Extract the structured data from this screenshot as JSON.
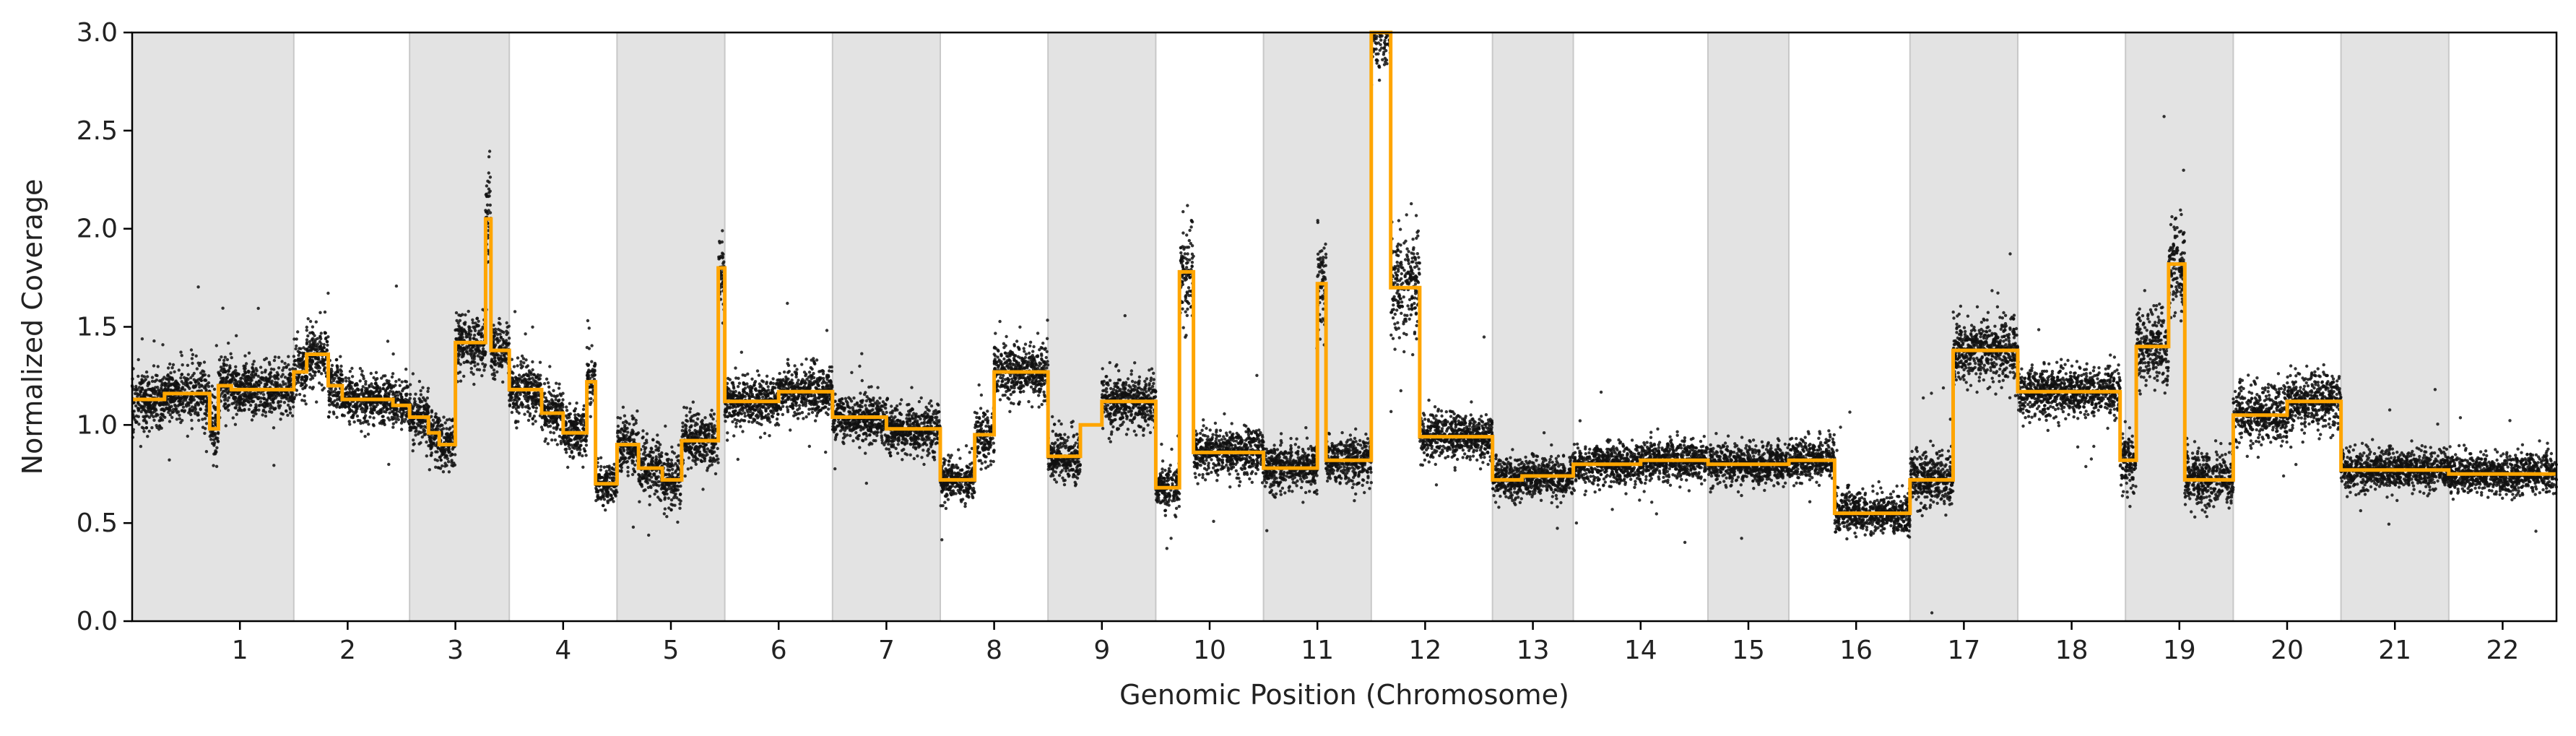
{
  "chart_data": {
    "type": "scatter",
    "title": "",
    "xlabel": "Genomic Position (Chromosome)",
    "ylabel": "Normalized Coverage",
    "ylim": [
      0.0,
      3.0
    ],
    "yticks": [
      "0.0",
      "0.5",
      "1.0",
      "1.5",
      "2.0",
      "2.5",
      "3.0"
    ],
    "grid": false,
    "legend": "none",
    "colors": {
      "points": "#111111",
      "segment_line": "#FFA500",
      "shade": "#E3E3E3",
      "shade_border": "#C8C8C8"
    },
    "x_unit": "genome index (chromosome boundaries)",
    "chromosomes": [
      {
        "label": "1",
        "start": 0.0,
        "end": 1.5,
        "shaded": true
      },
      {
        "label": "2",
        "start": 1.5,
        "end": 2.575,
        "shaded": false
      },
      {
        "label": "3",
        "start": 2.575,
        "end": 3.5,
        "shaded": true
      },
      {
        "label": "4",
        "start": 3.5,
        "end": 4.5,
        "shaded": false
      },
      {
        "label": "5",
        "start": 4.5,
        "end": 5.5,
        "shaded": true
      },
      {
        "label": "6",
        "start": 5.5,
        "end": 6.5,
        "shaded": false
      },
      {
        "label": "7",
        "start": 6.5,
        "end": 7.5,
        "shaded": true
      },
      {
        "label": "8",
        "start": 7.5,
        "end": 8.5,
        "shaded": false
      },
      {
        "label": "9",
        "start": 8.5,
        "end": 9.5,
        "shaded": true
      },
      {
        "label": "10",
        "start": 9.5,
        "end": 10.5,
        "shaded": false
      },
      {
        "label": "11",
        "start": 10.5,
        "end": 11.5,
        "shaded": true
      },
      {
        "label": "12",
        "start": 11.5,
        "end": 12.625,
        "shaded": false
      },
      {
        "label": "13",
        "start": 12.625,
        "end": 13.375,
        "shaded": true
      },
      {
        "label": "14",
        "start": 13.375,
        "end": 14.625,
        "shaded": false
      },
      {
        "label": "15",
        "start": 14.625,
        "end": 15.375,
        "shaded": true
      },
      {
        "label": "16",
        "start": 15.375,
        "end": 16.5,
        "shaded": false
      },
      {
        "label": "17",
        "start": 16.5,
        "end": 17.5,
        "shaded": true
      },
      {
        "label": "18",
        "start": 17.5,
        "end": 18.5,
        "shaded": false
      },
      {
        "label": "19",
        "start": 18.5,
        "end": 19.5,
        "shaded": true
      },
      {
        "label": "20",
        "start": 19.5,
        "end": 20.5,
        "shaded": false
      },
      {
        "label": "21",
        "start": 20.5,
        "end": 21.5,
        "shaded": true
      },
      {
        "label": "22",
        "start": 21.5,
        "end": 22.5,
        "shaded": false
      }
    ],
    "xticks": [
      {
        "label": "1",
        "x": 1
      },
      {
        "label": "2",
        "x": 2
      },
      {
        "label": "3",
        "x": 3
      },
      {
        "label": "4",
        "x": 4
      },
      {
        "label": "5",
        "x": 5
      },
      {
        "label": "6",
        "x": 6
      },
      {
        "label": "7",
        "x": 7
      },
      {
        "label": "8",
        "x": 8
      },
      {
        "label": "9",
        "x": 9
      },
      {
        "label": "10",
        "x": 10
      },
      {
        "label": "11",
        "x": 11
      },
      {
        "label": "12",
        "x": 12
      },
      {
        "label": "13",
        "x": 13
      },
      {
        "label": "14",
        "x": 14
      },
      {
        "label": "15",
        "x": 15
      },
      {
        "label": "16",
        "x": 16
      },
      {
        "label": "17",
        "x": 17
      },
      {
        "label": "18",
        "x": 18
      },
      {
        "label": "19",
        "x": 19
      },
      {
        "label": "20",
        "x": 20
      },
      {
        "label": "21",
        "x": 21
      },
      {
        "label": "22",
        "x": 22
      }
    ],
    "xlim": [
      0.0,
      22.5
    ],
    "points_per_unit": 90,
    "segments": [
      {
        "x0": 0.0,
        "x1": 0.3,
        "y": 1.13,
        "sd": 0.07
      },
      {
        "x0": 0.3,
        "x1": 0.72,
        "y": 1.16,
        "sd": 0.07
      },
      {
        "x0": 0.72,
        "x1": 0.8,
        "y": 0.98,
        "sd": 0.07
      },
      {
        "x0": 0.8,
        "x1": 0.92,
        "y": 1.2,
        "sd": 0.07
      },
      {
        "x0": 0.92,
        "x1": 1.5,
        "y": 1.18,
        "sd": 0.07
      },
      {
        "x0": 1.5,
        "x1": 1.62,
        "y": 1.27,
        "sd": 0.07
      },
      {
        "x0": 1.62,
        "x1": 1.82,
        "y": 1.36,
        "sd": 0.08
      },
      {
        "x0": 1.82,
        "x1": 1.95,
        "y": 1.2,
        "sd": 0.07
      },
      {
        "x0": 1.95,
        "x1": 2.42,
        "y": 1.13,
        "sd": 0.06
      },
      {
        "x0": 2.42,
        "x1": 2.575,
        "y": 1.1,
        "sd": 0.06
      },
      {
        "x0": 2.575,
        "x1": 2.75,
        "y": 1.04,
        "sd": 0.07
      },
      {
        "x0": 2.75,
        "x1": 2.85,
        "y": 0.96,
        "sd": 0.07
      },
      {
        "x0": 2.85,
        "x1": 3.0,
        "y": 0.9,
        "sd": 0.06
      },
      {
        "x0": 3.0,
        "x1": 3.28,
        "y": 1.42,
        "sd": 0.07
      },
      {
        "x0": 3.28,
        "x1": 3.33,
        "y": 2.05,
        "sd": 0.14
      },
      {
        "x0": 3.33,
        "x1": 3.5,
        "y": 1.38,
        "sd": 0.07
      },
      {
        "x0": 3.5,
        "x1": 3.8,
        "y": 1.18,
        "sd": 0.07
      },
      {
        "x0": 3.8,
        "x1": 4.0,
        "y": 1.06,
        "sd": 0.07
      },
      {
        "x0": 4.0,
        "x1": 4.22,
        "y": 0.96,
        "sd": 0.06
      },
      {
        "x0": 4.22,
        "x1": 4.3,
        "y": 1.22,
        "sd": 0.07
      },
      {
        "x0": 4.3,
        "x1": 4.5,
        "y": 0.7,
        "sd": 0.05
      },
      {
        "x0": 4.5,
        "x1": 4.7,
        "y": 0.9,
        "sd": 0.07
      },
      {
        "x0": 4.7,
        "x1": 4.92,
        "y": 0.78,
        "sd": 0.07
      },
      {
        "x0": 4.92,
        "x1": 5.1,
        "y": 0.72,
        "sd": 0.07
      },
      {
        "x0": 5.1,
        "x1": 5.44,
        "y": 0.92,
        "sd": 0.07
      },
      {
        "x0": 5.44,
        "x1": 5.5,
        "y": 1.8,
        "sd": 0.1
      },
      {
        "x0": 5.5,
        "x1": 6.0,
        "y": 1.12,
        "sd": 0.06
      },
      {
        "x0": 6.0,
        "x1": 6.5,
        "y": 1.17,
        "sd": 0.06
      },
      {
        "x0": 6.5,
        "x1": 7.0,
        "y": 1.04,
        "sd": 0.06
      },
      {
        "x0": 7.0,
        "x1": 7.5,
        "y": 0.98,
        "sd": 0.06
      },
      {
        "x0": 7.5,
        "x1": 7.82,
        "y": 0.72,
        "sd": 0.05
      },
      {
        "x0": 7.82,
        "x1": 8.0,
        "y": 0.95,
        "sd": 0.07
      },
      {
        "x0": 8.0,
        "x1": 8.5,
        "y": 1.27,
        "sd": 0.07
      },
      {
        "x0": 8.5,
        "x1": 8.8,
        "y": 0.84,
        "sd": 0.06
      },
      {
        "x0": 8.8,
        "x1": 9.0,
        "y": 1.0,
        "sd": 0.0,
        "nodots": true
      },
      {
        "x0": 9.0,
        "x1": 9.5,
        "y": 1.12,
        "sd": 0.07
      },
      {
        "x0": 9.5,
        "x1": 9.72,
        "y": 0.68,
        "sd": 0.05
      },
      {
        "x0": 9.72,
        "x1": 9.85,
        "y": 1.78,
        "sd": 0.12
      },
      {
        "x0": 9.85,
        "x1": 10.5,
        "y": 0.86,
        "sd": 0.06
      },
      {
        "x0": 10.5,
        "x1": 11.0,
        "y": 0.78,
        "sd": 0.06
      },
      {
        "x0": 11.0,
        "x1": 11.08,
        "y": 1.72,
        "sd": 0.12
      },
      {
        "x0": 11.08,
        "x1": 11.5,
        "y": 0.82,
        "sd": 0.06
      },
      {
        "x0": 11.5,
        "x1": 11.68,
        "y": 3.0,
        "sd": 0.1
      },
      {
        "x0": 11.68,
        "x1": 11.95,
        "y": 1.7,
        "sd": 0.14
      },
      {
        "x0": 11.95,
        "x1": 12.625,
        "y": 0.94,
        "sd": 0.06
      },
      {
        "x0": 12.625,
        "x1": 12.9,
        "y": 0.72,
        "sd": 0.05
      },
      {
        "x0": 12.9,
        "x1": 13.375,
        "y": 0.74,
        "sd": 0.05
      },
      {
        "x0": 13.375,
        "x1": 14.0,
        "y": 0.8,
        "sd": 0.05
      },
      {
        "x0": 14.0,
        "x1": 14.625,
        "y": 0.82,
        "sd": 0.05
      },
      {
        "x0": 14.625,
        "x1": 15.375,
        "y": 0.8,
        "sd": 0.05
      },
      {
        "x0": 15.375,
        "x1": 15.8,
        "y": 0.82,
        "sd": 0.05
      },
      {
        "x0": 15.8,
        "x1": 16.5,
        "y": 0.55,
        "sd": 0.05
      },
      {
        "x0": 16.5,
        "x1": 16.9,
        "y": 0.72,
        "sd": 0.07
      },
      {
        "x0": 16.9,
        "x1": 17.5,
        "y": 1.38,
        "sd": 0.08
      },
      {
        "x0": 17.5,
        "x1": 18.45,
        "y": 1.17,
        "sd": 0.06
      },
      {
        "x0": 18.45,
        "x1": 18.6,
        "y": 0.82,
        "sd": 0.07
      },
      {
        "x0": 18.6,
        "x1": 18.9,
        "y": 1.4,
        "sd": 0.1
      },
      {
        "x0": 18.9,
        "x1": 19.05,
        "y": 1.82,
        "sd": 0.12
      },
      {
        "x0": 19.05,
        "x1": 19.5,
        "y": 0.72,
        "sd": 0.07
      },
      {
        "x0": 19.5,
        "x1": 20.0,
        "y": 1.05,
        "sd": 0.07
      },
      {
        "x0": 20.0,
        "x1": 20.5,
        "y": 1.12,
        "sd": 0.07
      },
      {
        "x0": 20.5,
        "x1": 21.5,
        "y": 0.77,
        "sd": 0.05
      },
      {
        "x0": 21.5,
        "x1": 22.5,
        "y": 0.75,
        "sd": 0.05
      }
    ]
  }
}
